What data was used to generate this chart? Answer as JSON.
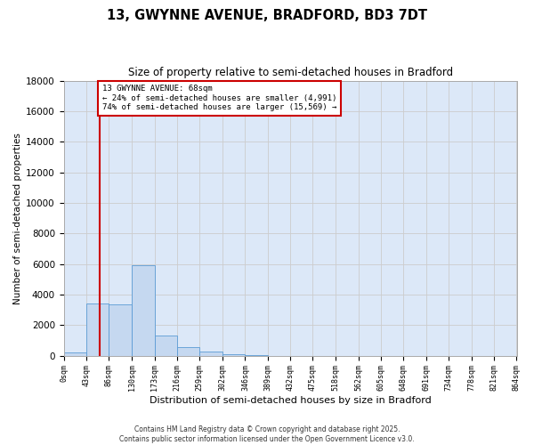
{
  "title_line1": "13, GWYNNE AVENUE, BRADFORD, BD3 7DT",
  "title_line2": "Size of property relative to semi-detached houses in Bradford",
  "xlabel": "Distribution of semi-detached houses by size in Bradford",
  "ylabel": "Number of semi-detached properties",
  "bin_labels": [
    "0sqm",
    "43sqm",
    "86sqm",
    "130sqm",
    "173sqm",
    "216sqm",
    "259sqm",
    "302sqm",
    "346sqm",
    "389sqm",
    "432sqm",
    "475sqm",
    "518sqm",
    "562sqm",
    "605sqm",
    "648sqm",
    "691sqm",
    "734sqm",
    "778sqm",
    "821sqm",
    "864sqm"
  ],
  "bin_edges": [
    0,
    43,
    86,
    130,
    173,
    216,
    259,
    302,
    346,
    389,
    432,
    475,
    518,
    562,
    605,
    648,
    691,
    734,
    778,
    821,
    864
  ],
  "bar_heights": [
    200,
    3400,
    3350,
    5900,
    1300,
    550,
    250,
    100,
    50,
    10,
    5,
    0,
    0,
    0,
    0,
    0,
    0,
    0,
    0,
    0
  ],
  "bar_color": "#c5d8f0",
  "bar_edge_color": "#5b9bd5",
  "property_size": 68,
  "property_label": "13 GWYNNE AVENUE: 68sqm",
  "pct_smaller": 24,
  "pct_larger": 74,
  "n_smaller": 4991,
  "n_larger": 15569,
  "annotation_box_color": "#ffffff",
  "annotation_box_edge": "#cc0000",
  "red_line_color": "#cc0000",
  "ylim": [
    0,
    18000
  ],
  "yticks": [
    0,
    2000,
    4000,
    6000,
    8000,
    10000,
    12000,
    14000,
    16000,
    18000
  ],
  "grid_color": "#cccccc",
  "background_color": "#dce8f8",
  "fig_bg_color": "#ffffff",
  "footer_line1": "Contains HM Land Registry data © Crown copyright and database right 2025.",
  "footer_line2": "Contains public sector information licensed under the Open Government Licence v3.0."
}
